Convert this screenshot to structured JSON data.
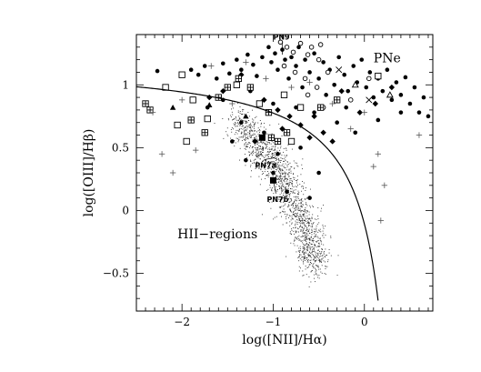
{
  "chart_data": {
    "type": "scatter",
    "xlabel": "log([NII]/Hα)",
    "ylabel": "log([OIII]/Hβ)",
    "xlim": [
      -2.5,
      0.75
    ],
    "ylim": [
      -0.8,
      1.4
    ],
    "x_ticks": [
      -2,
      -1,
      0
    ],
    "x_tick_labels": [
      "−2",
      "−1",
      "0"
    ],
    "y_ticks": [
      -0.5,
      0,
      0.5,
      1
    ],
    "y_tick_labels": [
      "−0.5",
      "0",
      "0.5",
      "1"
    ],
    "grid": false,
    "region_labels": [
      {
        "text": "PNe",
        "x": 0.1,
        "y": 1.18
      },
      {
        "text": "HII−regions",
        "x": -2.05,
        "y": -0.22
      }
    ],
    "annotations": [
      {
        "text": "PN9",
        "x": -1.0,
        "y": 1.36,
        "target_x": -0.9,
        "target_y": 1.24
      },
      {
        "text": "PN7a",
        "x": -1.2,
        "y": 0.34,
        "target_x": -0.98,
        "target_y": 0.42
      },
      {
        "text": "PN7b",
        "x": -1.07,
        "y": 0.07,
        "target_x": -1.0,
        "target_y": 0.24
      }
    ],
    "demarcation_curve": {
      "equation": "y = 0.61/(x - 0.47) + 1.19",
      "x_range": [
        -2.5,
        0.15
      ]
    },
    "series": [
      {
        "marker": "filled-circle",
        "points": [
          [
            -2.27,
            1.11
          ],
          [
            -1.9,
            1.12
          ],
          [
            -1.82,
            1.08
          ],
          [
            -1.75,
            1.15
          ],
          [
            -1.62,
            1.05
          ],
          [
            -1.55,
            1.17
          ],
          [
            -1.48,
            1.09
          ],
          [
            -1.4,
            1.2
          ],
          [
            -1.35,
            1.12
          ],
          [
            -1.28,
            1.24
          ],
          [
            -1.22,
            1.16
          ],
          [
            -1.18,
            1.07
          ],
          [
            -1.12,
            1.22
          ],
          [
            -1.05,
            1.3
          ],
          [
            -1.02,
            1.18
          ],
          [
            -0.98,
            1.25
          ],
          [
            -0.95,
            1.12
          ],
          [
            -0.9,
            1.28
          ],
          [
            -0.87,
            1.2
          ],
          [
            -0.83,
            1.05
          ],
          [
            -0.8,
            1.22
          ],
          [
            -0.75,
            1.15
          ],
          [
            -0.72,
            1.3
          ],
          [
            -0.68,
            0.98
          ],
          [
            -0.65,
            1.2
          ],
          [
            -0.6,
            1.1
          ],
          [
            -0.55,
            1.25
          ],
          [
            -0.5,
            1.05
          ],
          [
            -0.45,
            1.18
          ],
          [
            -0.42,
            0.92
          ],
          [
            -0.38,
            1.12
          ],
          [
            -0.33,
            1.0
          ],
          [
            -0.28,
            1.22
          ],
          [
            -0.22,
            1.08
          ],
          [
            -0.18,
            0.95
          ],
          [
            -0.12,
            1.15
          ],
          [
            -0.08,
            1.02
          ],
          [
            -0.03,
            1.2
          ],
          [
            0.02,
            0.98
          ],
          [
            0.06,
            1.1
          ],
          [
            0.1,
            0.9
          ],
          [
            0.15,
            1.05
          ],
          [
            0.2,
            0.95
          ],
          [
            0.25,
            1.12
          ],
          [
            0.3,
            0.88
          ],
          [
            0.35,
            1.02
          ],
          [
            0.4,
            0.92
          ],
          [
            0.45,
            1.06
          ],
          [
            0.5,
            0.85
          ],
          [
            0.55,
            0.98
          ],
          [
            0.6,
            0.78
          ],
          [
            0.65,
            0.9
          ],
          [
            0.7,
            0.75
          ],
          [
            -1.25,
            0.95
          ],
          [
            -1.0,
            0.85
          ],
          [
            -0.75,
            0.82
          ],
          [
            -0.55,
            0.78
          ],
          [
            -0.3,
            0.7
          ],
          [
            -0.1,
            0.62
          ],
          [
            -1.35,
            0.7
          ],
          [
            -1.1,
            0.62
          ],
          [
            -0.95,
            0.45
          ],
          [
            -0.7,
            0.5
          ],
          [
            -0.5,
            0.3
          ],
          [
            -1.45,
            0.55
          ],
          [
            -1.3,
            0.4
          ],
          [
            -1.0,
            0.3
          ],
          [
            -0.85,
            0.15
          ],
          [
            -0.6,
            0.1
          ],
          [
            -1.55,
            0.88
          ],
          [
            -1.72,
            0.82
          ],
          [
            -0.2,
            0.82
          ],
          [
            0.15,
            0.72
          ],
          [
            0.4,
            0.78
          ]
        ]
      },
      {
        "marker": "open-circle",
        "points": [
          [
            -0.92,
            1.34
          ],
          [
            -0.85,
            1.3
          ],
          [
            -0.78,
            1.26
          ],
          [
            -0.7,
            1.33
          ],
          [
            -0.62,
            1.24
          ],
          [
            -0.58,
            1.3
          ],
          [
            -0.5,
            1.2
          ],
          [
            -0.48,
            1.32
          ],
          [
            -0.88,
            1.15
          ],
          [
            -0.76,
            1.1
          ],
          [
            -0.65,
            1.05
          ],
          [
            -0.52,
            0.98
          ],
          [
            -0.4,
            1.1
          ],
          [
            -0.62,
            0.92
          ],
          [
            -0.45,
            0.82
          ],
          [
            0.05,
            1.05
          ],
          [
            -0.15,
            0.88
          ]
        ]
      },
      {
        "marker": "filled-diamond",
        "points": [
          [
            -1.1,
            0.88
          ],
          [
            -0.95,
            0.8
          ],
          [
            -0.82,
            0.75
          ],
          [
            -0.7,
            0.68
          ],
          [
            -0.9,
            0.65
          ],
          [
            -1.2,
            0.55
          ],
          [
            -0.6,
            0.58
          ],
          [
            -0.45,
            0.62
          ],
          [
            -0.35,
            0.55
          ],
          [
            -0.55,
            0.75
          ],
          [
            -1.35,
            1.08
          ],
          [
            -1.55,
            0.95
          ],
          [
            -0.25,
            0.95
          ],
          [
            0.12,
            0.85
          ],
          [
            0.3,
            0.98
          ],
          [
            -1.7,
            0.9
          ],
          [
            -0.05,
            0.78
          ]
        ]
      },
      {
        "marker": "open-square",
        "points": [
          [
            -2.18,
            0.98
          ],
          [
            -2.0,
            1.08
          ],
          [
            -1.88,
            0.88
          ],
          [
            -1.72,
            0.73
          ],
          [
            -2.05,
            0.68
          ],
          [
            -1.95,
            0.55
          ],
          [
            -1.4,
            1.0
          ],
          [
            -1.15,
            0.85
          ],
          [
            -0.88,
            0.92
          ],
          [
            -0.7,
            0.82
          ],
          [
            -0.8,
            0.55
          ],
          [
            0.15,
            1.07
          ]
        ]
      },
      {
        "marker": "boxed-plus",
        "points": [
          [
            -2.4,
            0.85
          ],
          [
            -2.35,
            0.8
          ],
          [
            -1.9,
            0.72
          ],
          [
            -1.75,
            0.62
          ],
          [
            -1.6,
            0.9
          ],
          [
            -1.5,
            0.98
          ],
          [
            -1.38,
            1.05
          ],
          [
            -1.25,
            0.98
          ],
          [
            -1.05,
            0.78
          ],
          [
            -0.85,
            0.62
          ],
          [
            -0.95,
            0.55
          ],
          [
            -1.02,
            0.58
          ],
          [
            -0.48,
            0.82
          ],
          [
            -0.3,
            0.88
          ]
        ]
      },
      {
        "marker": "plus",
        "points": [
          [
            -2.32,
            0.78
          ],
          [
            -2.22,
            0.45
          ],
          [
            -2.0,
            0.88
          ],
          [
            -1.68,
            1.15
          ],
          [
            -1.45,
            0.85
          ],
          [
            -1.3,
            1.18
          ],
          [
            -1.08,
            1.05
          ],
          [
            -0.8,
            0.98
          ],
          [
            -0.6,
            1.02
          ],
          [
            -0.35,
            0.85
          ],
          [
            -0.15,
            0.65
          ],
          [
            0.0,
            0.78
          ],
          [
            0.1,
            0.35
          ],
          [
            0.15,
            0.45
          ],
          [
            0.22,
            0.2
          ],
          [
            0.18,
            -0.08
          ],
          [
            0.6,
            0.6
          ],
          [
            -2.1,
            0.3
          ],
          [
            -1.85,
            0.48
          ]
        ]
      },
      {
        "marker": "filled-triangle",
        "points": [
          [
            -2.1,
            0.82
          ],
          [
            -1.7,
            0.84
          ],
          [
            -1.3,
            0.75
          ]
        ]
      },
      {
        "marker": "open-triangle",
        "points": [
          [
            -0.1,
            1.0
          ],
          [
            0.28,
            0.92
          ]
        ]
      },
      {
        "marker": "cross",
        "points": [
          [
            -0.28,
            1.12
          ],
          [
            0.05,
            0.88
          ]
        ]
      },
      {
        "marker": "filled-square",
        "points": [
          [
            -1.0,
            0.24
          ],
          [
            -1.12,
            0.58
          ]
        ]
      },
      {
        "marker": "dot",
        "note": "dense cloud of HII regions",
        "cloud_center_path": [
          [
            -1.4,
            0.72
          ],
          [
            -1.2,
            0.55
          ],
          [
            -1.0,
            0.38
          ],
          [
            -0.85,
            0.18
          ],
          [
            -0.7,
            -0.05
          ],
          [
            -0.6,
            -0.25
          ],
          [
            -0.55,
            -0.45
          ]
        ],
        "count": 1600
      }
    ]
  }
}
